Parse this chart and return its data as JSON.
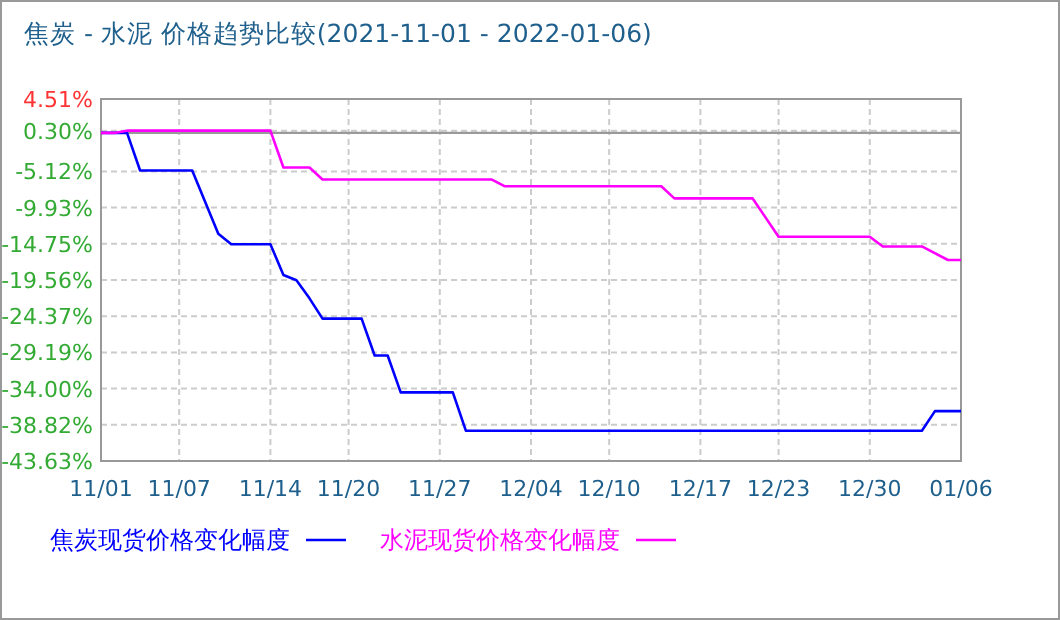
{
  "chart_data": {
    "type": "line",
    "title": "焦炭 - 水泥 价格趋势比较(2021-11-01 - 2022-01-06)",
    "xlim": [
      "2021-11-01",
      "2022-01-06"
    ],
    "xticks": [
      {
        "value": "2021-11-01",
        "label": "11/01"
      },
      {
        "value": "2021-11-07",
        "label": "11/07"
      },
      {
        "value": "2021-11-14",
        "label": "11/14"
      },
      {
        "value": "2021-11-20",
        "label": "11/20"
      },
      {
        "value": "2021-11-27",
        "label": "11/27"
      },
      {
        "value": "2021-12-04",
        "label": "12/04"
      },
      {
        "value": "2021-12-10",
        "label": "12/10"
      },
      {
        "value": "2021-12-17",
        "label": "12/17"
      },
      {
        "value": "2021-12-23",
        "label": "12/23"
      },
      {
        "value": "2021-12-30",
        "label": "12/30"
      },
      {
        "value": "2022-01-06",
        "label": "01/06"
      }
    ],
    "ylim": [
      -43.63,
      4.51
    ],
    "yticks": [
      {
        "value": 4.51,
        "label": "4.51%"
      },
      {
        "value": 0.3,
        "label": "0.30%"
      },
      {
        "value": -5.12,
        "label": "-5.12%"
      },
      {
        "value": -9.93,
        "label": "-9.93%"
      },
      {
        "value": -14.75,
        "label": "-14.75%"
      },
      {
        "value": -19.56,
        "label": "-19.56%"
      },
      {
        "value": -24.37,
        "label": "-24.37%"
      },
      {
        "value": -29.19,
        "label": "-29.19%"
      },
      {
        "value": -34.0,
        "label": "-34.00%"
      },
      {
        "value": -38.82,
        "label": "-38.82%"
      },
      {
        "value": -43.63,
        "label": "-43.63%"
      }
    ],
    "grid": true,
    "legend": "bottom",
    "ref_lines": [
      {
        "axis": "y",
        "value": 0,
        "color": "#999999"
      }
    ],
    "series": [
      {
        "name": "焦炭现货价格变化幅度",
        "color": "#0000ff",
        "x": [
          "2021-11-01",
          "2021-11-03",
          "2021-11-04",
          "2021-11-08",
          "2021-11-10",
          "2021-11-11",
          "2021-11-14",
          "2021-11-15",
          "2021-11-16",
          "2021-11-17",
          "2021-11-18",
          "2021-11-21",
          "2021-11-22",
          "2021-11-23",
          "2021-11-24",
          "2021-11-28",
          "2021-11-29",
          "2022-01-03",
          "2022-01-04",
          "2022-01-06"
        ],
        "values": [
          0,
          0,
          -5.0,
          -5.0,
          -13.4,
          -14.8,
          -14.8,
          -18.9,
          -19.6,
          -22.0,
          -24.7,
          -24.7,
          -29.6,
          -29.6,
          -34.5,
          -34.5,
          -39.6,
          -39.6,
          -37.0,
          -37.0
        ]
      },
      {
        "name": "水泥现货价格变化幅度",
        "color": "#ff00ff",
        "x": [
          "2021-11-01",
          "2021-11-02",
          "2021-11-03",
          "2021-11-14",
          "2021-11-15",
          "2021-11-17",
          "2021-11-18",
          "2021-12-01",
          "2021-12-02",
          "2021-12-14",
          "2021-12-15",
          "2021-12-21",
          "2021-12-23",
          "2021-12-30",
          "2021-12-31",
          "2022-01-03",
          "2022-01-05",
          "2022-01-06"
        ],
        "values": [
          0,
          0,
          0.3,
          0.3,
          -4.6,
          -4.6,
          -6.2,
          -6.2,
          -7.1,
          -7.1,
          -8.7,
          -8.7,
          -13.8,
          -13.8,
          -15.1,
          -15.1,
          -16.9,
          -16.9
        ]
      }
    ]
  }
}
